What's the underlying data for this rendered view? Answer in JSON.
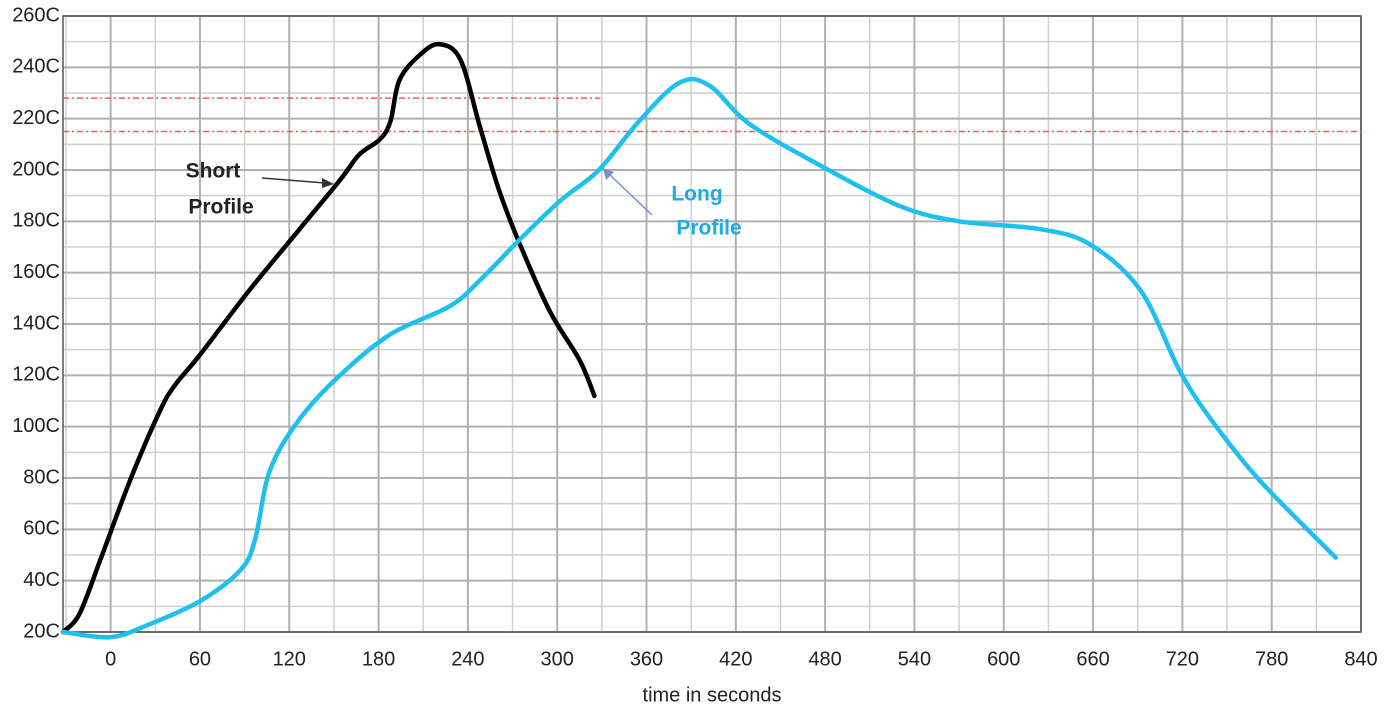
{
  "chart_data": {
    "type": "line",
    "x_label": "time in seconds",
    "xlim": [
      -32,
      840
    ],
    "xticks": [
      0,
      60,
      120,
      180,
      240,
      300,
      360,
      420,
      480,
      540,
      600,
      660,
      720,
      780,
      840
    ],
    "ylim": [
      20,
      260
    ],
    "yticks": [
      {
        "value": 20,
        "label": "20C"
      },
      {
        "value": 40,
        "label": "40C"
      },
      {
        "value": 60,
        "label": "60C"
      },
      {
        "value": 80,
        "label": "80C"
      },
      {
        "value": 100,
        "label": "100C"
      },
      {
        "value": 120,
        "label": "120C"
      },
      {
        "value": 140,
        "label": "140C"
      },
      {
        "value": 160,
        "label": "160C"
      },
      {
        "value": 180,
        "label": "180C"
      },
      {
        "value": 200,
        "label": "200C"
      },
      {
        "value": 220,
        "label": "220C"
      },
      {
        "value": 240,
        "label": "240C"
      },
      {
        "value": 260,
        "label": "260C"
      }
    ],
    "grid": true,
    "minor_x_step": 30,
    "minor_y_step": 10,
    "reference_lines": [
      {
        "value": 228,
        "x_end": 329,
        "color": "#ff5555"
      },
      {
        "value": 215,
        "color": "#ff5555"
      }
    ],
    "series": [
      {
        "name": "Short Profile",
        "color": "#000000",
        "x": [
          -32,
          -21,
          -7,
          13,
          33,
          43,
          60,
          93,
          127,
          154,
          167,
          181,
          188,
          194,
          208,
          221,
          235,
          248,
          261,
          275,
          295,
          315,
          325
        ],
        "values": [
          20,
          27,
          48,
          79,
          106,
          116,
          128,
          153,
          177,
          196,
          206,
          212,
          219,
          235,
          245,
          249,
          243,
          217,
          192,
          171,
          145,
          126,
          112
        ]
      },
      {
        "name": "Long Profile",
        "color": "#1ec0f0",
        "x": [
          -32,
          0,
          26,
          60,
          87,
          97,
          107,
          127,
          154,
          188,
          228,
          248,
          275,
          302,
          328,
          355,
          382,
          402,
          429,
          476,
          530,
          570,
          624,
          658,
          692,
          718,
          739,
          772,
          823
        ],
        "values": [
          20,
          18,
          23,
          32,
          44,
          56,
          83,
          103,
          120,
          136,
          147,
          157,
          173,
          188,
          200,
          219,
          234,
          233,
          218,
          202,
          186,
          180,
          177,
          171,
          153,
          122,
          103,
          79,
          49
        ]
      }
    ],
    "annotations": [
      {
        "lines": [
          "Short",
          "Profile"
        ],
        "series": 0
      },
      {
        "lines": [
          "Long",
          "Profile"
        ],
        "series": 1
      }
    ]
  }
}
